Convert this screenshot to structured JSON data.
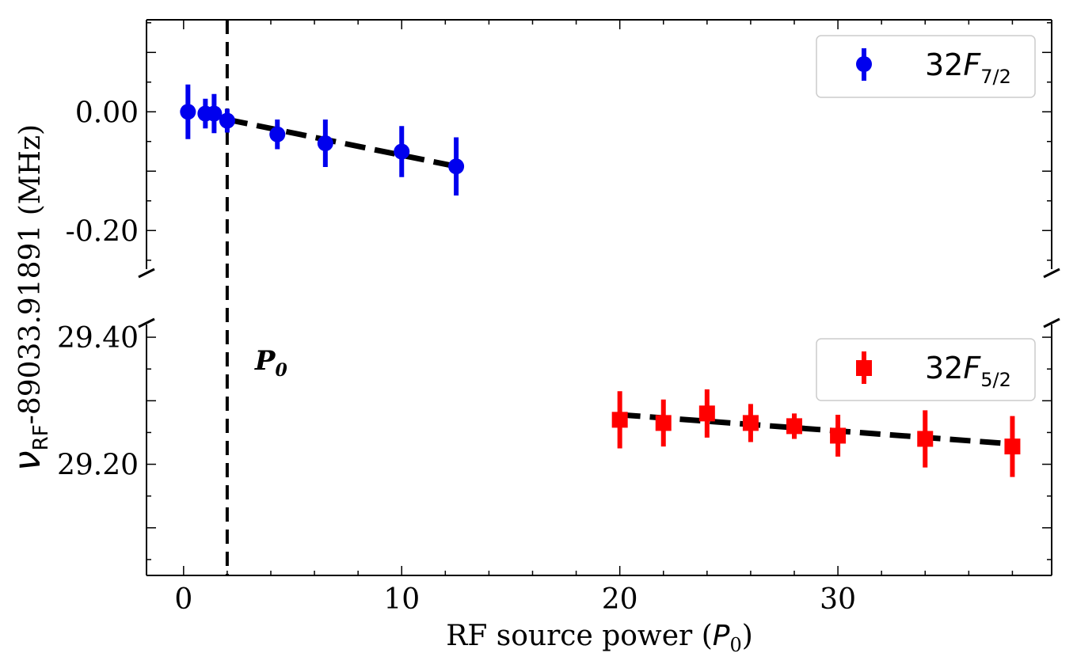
{
  "chart_data": {
    "type": "scatter",
    "xlabel": {
      "main": "RF source power (",
      "var": "P",
      "sub": "0",
      "tail": ")"
    },
    "ylabel": {
      "var": "ν",
      "sub": "RF",
      "tail": "-89033.91891 (MHz)"
    },
    "xlim": [
      -1.7,
      39.8
    ],
    "x_ticks": [
      0,
      10,
      20,
      30
    ],
    "x_tick_labels": [
      "0",
      "10",
      "20",
      "30"
    ],
    "top_panel": {
      "ylim": [
        -0.265,
        0.155
      ],
      "y_ticks": [
        0.0,
        -0.2
      ],
      "y_tick_labels": [
        "0.00",
        "-0.20"
      ]
    },
    "bottom_panel": {
      "ylim": [
        29.025,
        29.42
      ],
      "y_ticks": [
        29.4,
        29.2
      ],
      "y_tick_labels": [
        "29.40",
        "29.20"
      ]
    },
    "vertical_line": {
      "x": 2.0,
      "label_main": "P",
      "label_sub": "0"
    },
    "series": [
      {
        "name": "32F7/2",
        "legend_main": "32",
        "legend_var": "F",
        "legend_sub": "7/2",
        "panel": "top",
        "marker": "circle",
        "color": "#0000ee",
        "x": [
          0.2,
          1.0,
          1.4,
          2.0,
          4.3,
          6.5,
          10.0,
          12.5
        ],
        "y": [
          0.0,
          -0.003,
          -0.003,
          -0.015,
          -0.038,
          -0.053,
          -0.067,
          -0.092
        ],
        "yerr": [
          0.046,
          0.025,
          0.033,
          0.02,
          0.025,
          0.04,
          0.043,
          0.049
        ],
        "fit": {
          "x": [
            2.0,
            12.5
          ],
          "y": [
            -0.013,
            -0.092
          ]
        }
      },
      {
        "name": "32F5/2",
        "legend_main": "32",
        "legend_var": "F",
        "legend_sub": "5/2",
        "panel": "bottom",
        "marker": "square",
        "color": "#ff0000",
        "x": [
          20,
          22,
          24,
          26,
          28,
          30,
          34,
          38
        ],
        "y": [
          29.27,
          29.265,
          29.28,
          29.265,
          29.26,
          29.245,
          29.24,
          29.228
        ],
        "yerr": [
          0.045,
          0.037,
          0.038,
          0.03,
          0.02,
          0.033,
          0.045,
          0.048
        ],
        "fit": {
          "x": [
            20,
            38
          ],
          "y": [
            29.278,
            29.232
          ]
        }
      }
    ]
  }
}
